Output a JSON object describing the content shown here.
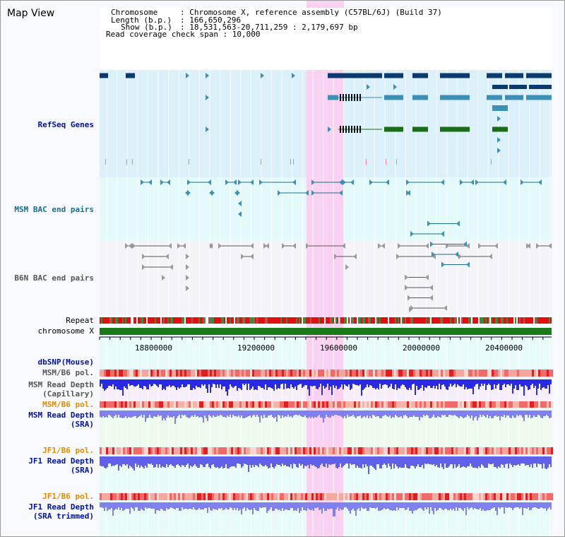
{
  "page_title": "Map View",
  "info": {
    "chromosome_key": "Chromosome",
    "chromosome_value": ": Chromosome X, reference assembly (C57BL/6J) (Build 37)",
    "length_key": "Length (b.p.)",
    "length_value": ": 166,650,296",
    "show_key": "Show (b.p.)",
    "show_value": ": 18,531,563-20,711,259 : 2,179,697 bp",
    "coverage_text": "Read coverage check span : 10,000"
  },
  "tracks": {
    "refseq": "RefSeq Genes",
    "msm_bac": "MSM BAC end pairs",
    "b6n_bac": "B6N BAC end pairs",
    "repeat": "Repeat",
    "chromosome": "chromosome X",
    "dbsnp": "dbSNP(Mouse)",
    "msm_b6_pol_1": "MSM/B6 pol.",
    "msm_depth_cap_1": "MSM Read Depth",
    "msm_depth_cap_2": "(Capillary)",
    "msm_b6_pol_2": "MSM/B6 pol.",
    "msm_depth_sra_1": "MSM Read Depth",
    "msm_depth_sra_2": "(SRA)",
    "jf1_b6_pol_1": "JF1/B6 pol.",
    "jf1_depth_sra_1": "JF1 Read Depth",
    "jf1_depth_sra_2": "(SRA)",
    "jf1_b6_pol_2": "JF1/B6 pol.",
    "jf1_depth_trim_1": "JF1 Read Depth",
    "jf1_depth_trim_2": "(SRA trimmed)"
  },
  "axis_ticks": [
    "18800000",
    "19200000",
    "19600000",
    "20000000",
    "20400000"
  ],
  "colors": {
    "refseq_bg": "#dcf0fa",
    "msm_bg": "#e4fafa",
    "highlight": "#f8d2f0",
    "gene_dark": "#0d3a6e",
    "gene_mid": "#3d8fb5",
    "gene_green": "#1a6e1a",
    "chromosome_bar": "#1a7a1a",
    "depth_blue": "#2a2ae6",
    "depth_light": "#8080f0"
  }
}
